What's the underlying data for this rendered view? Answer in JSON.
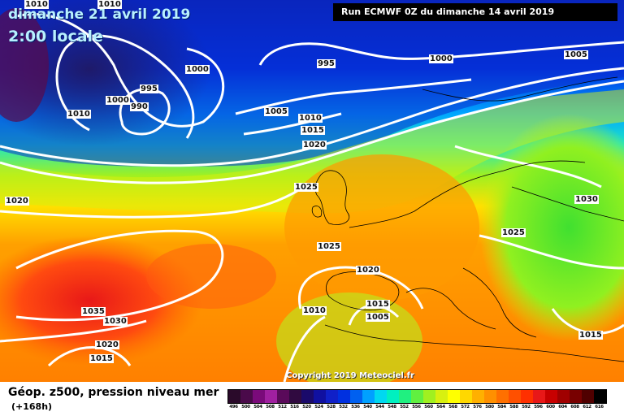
{
  "header": {
    "date_title": "dimanche 21 avril 2019",
    "date_time": "2:00 locale",
    "run_info": "Run ECMWF 0Z du dimanche 14 avril 2019"
  },
  "map": {
    "copyright": "Copyright 2019 Meteociel.fr",
    "isobar_labels": [
      "1010",
      "1010",
      "1010",
      "1000",
      "995",
      "1000",
      "990",
      "995",
      "1000",
      "1005",
      "1005",
      "1010",
      "1015",
      "1020",
      "1025",
      "1020",
      "1025",
      "1020",
      "1030",
      "1025",
      "1035",
      "1030",
      "1020",
      "1015",
      "1015",
      "1010",
      "1005",
      "1015"
    ]
  },
  "footer": {
    "title": "Géop. z500, pression niveau mer",
    "subtitle": "(+168h)"
  },
  "scale": {
    "labels": [
      "496",
      "500",
      "504",
      "508",
      "512",
      "516",
      "520",
      "524",
      "528",
      "532",
      "536",
      "540",
      "544",
      "548",
      "552",
      "556",
      "560",
      "564",
      "568",
      "572",
      "576",
      "580",
      "584",
      "588",
      "592",
      "596",
      "600",
      "604",
      "608",
      "612",
      "616"
    ],
    "colors": [
      "#2a0a2a",
      "#4a0a4a",
      "#7a0a7a",
      "#a020a0",
      "#5a0a5a",
      "#300a40",
      "#1a0a6a",
      "#1010a0",
      "#1020c8",
      "#0030e0",
      "#0060f0",
      "#00a0ff",
      "#00d8f0",
      "#00f0c0",
      "#20f080",
      "#60f040",
      "#a0f020",
      "#d8f010",
      "#ffff00",
      "#ffd800",
      "#ffb000",
      "#ff9000",
      "#ff7000",
      "#ff5000",
      "#ff3000",
      "#e81818",
      "#c80000",
      "#a00000",
      "#780000",
      "#500000",
      "#000000"
    ]
  }
}
